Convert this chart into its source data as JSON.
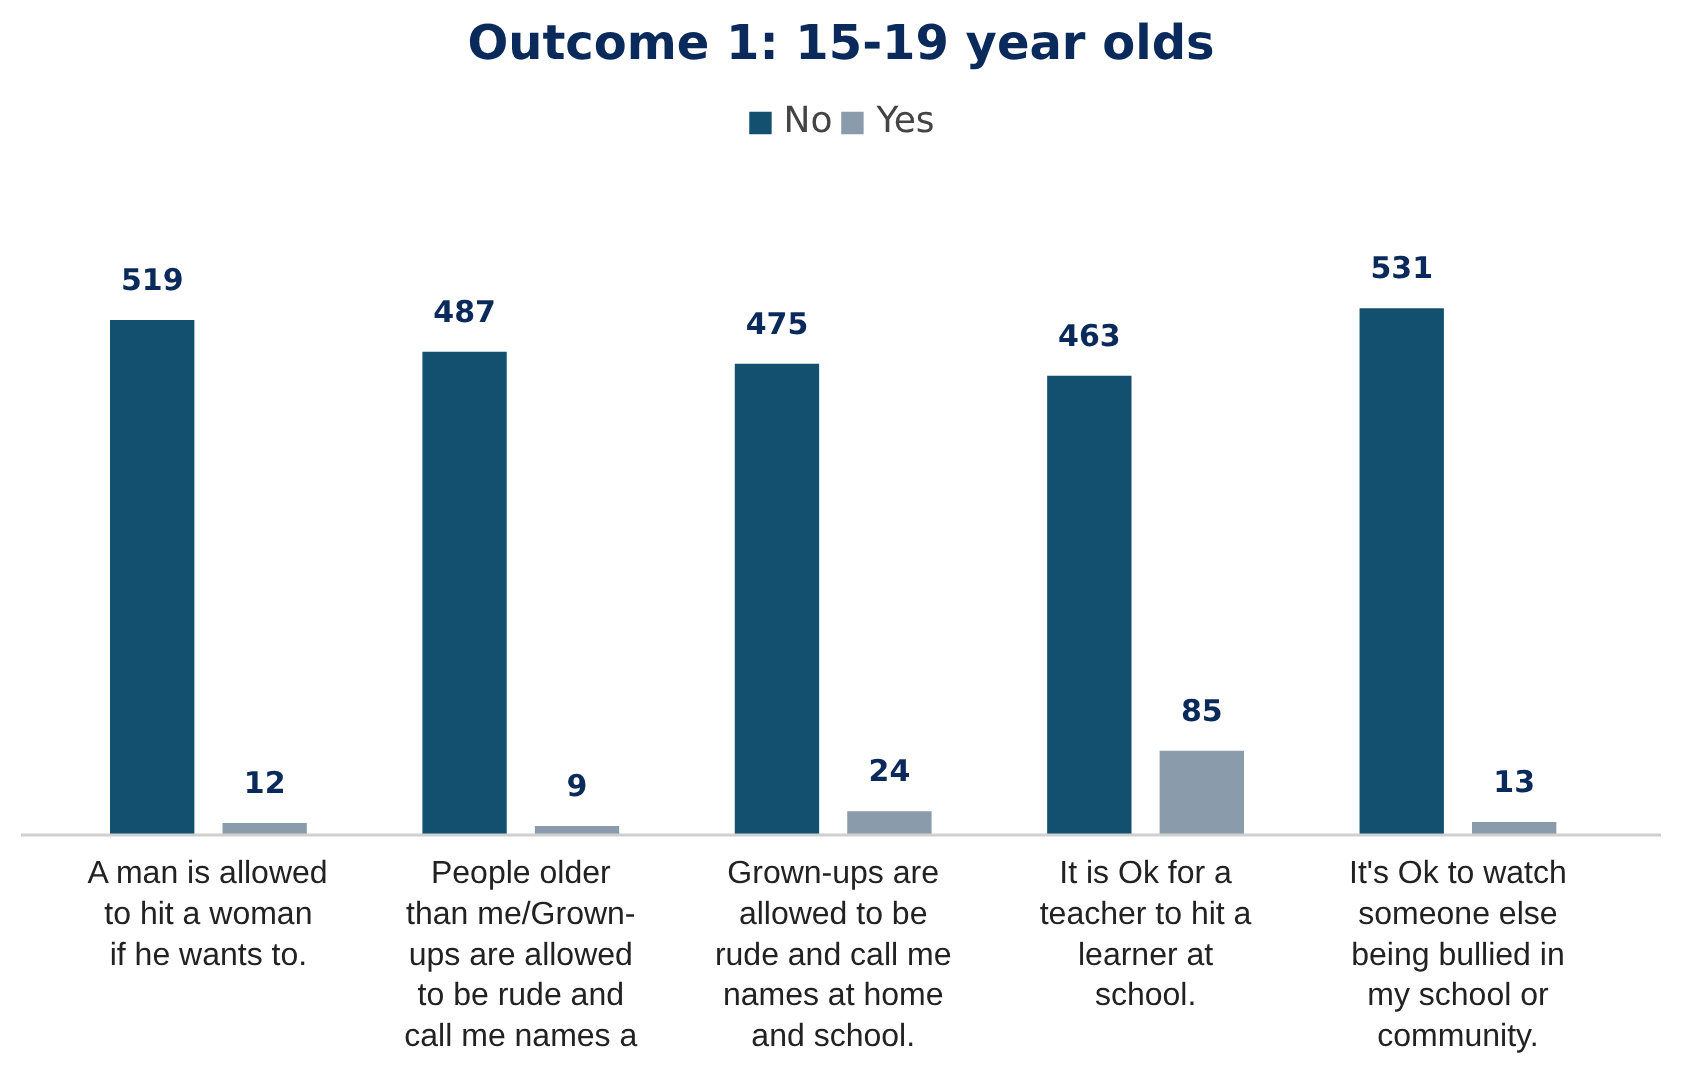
{
  "chart_data": {
    "type": "bar",
    "title": "Outcome 1: 15-19 year olds",
    "categories": [
      "A man is allowed to hit a woman if he wants to.",
      "People older than me/Grown-ups are allowed to be rude and call me names a",
      "Grown-ups are allowed to be rude and call me names at home and school.",
      "It is Ok for a teacher to hit a learner at school.",
      "It's Ok to watch someone else being bullied in my school or community."
    ],
    "series": [
      {
        "name": "No",
        "color": "#134f6e",
        "values": [
          519,
          487,
          475,
          463,
          531
        ]
      },
      {
        "name": "Yes",
        "color": "#8a9bab",
        "values": [
          12,
          9,
          24,
          85,
          13
        ]
      }
    ],
    "data_labels": true,
    "legend": "top",
    "grid": false
  }
}
